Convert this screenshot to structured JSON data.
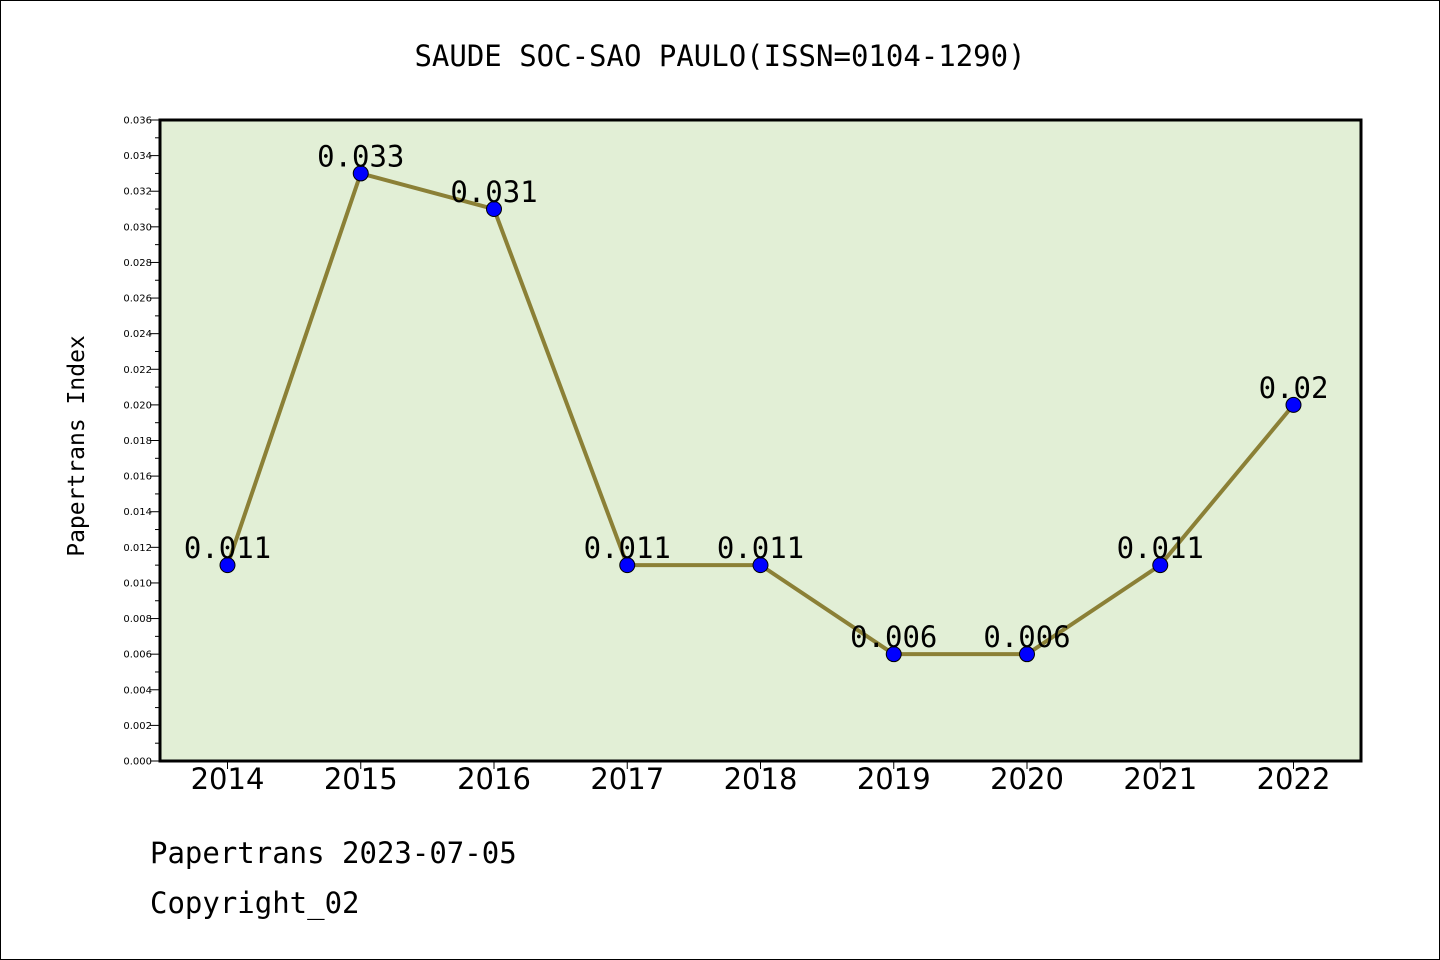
{
  "chart_data": {
    "type": "line",
    "title": "SAUDE SOC-SAO PAULO(ISSN=0104-1290)",
    "xlabel": "",
    "ylabel": "Papertrans Index",
    "x": [
      "2014",
      "2015",
      "2016",
      "2017",
      "2018",
      "2019",
      "2020",
      "2021",
      "2022"
    ],
    "series": [
      {
        "values": [
          0.011,
          0.033,
          0.031,
          0.011,
          0.011,
          0.006,
          0.006,
          0.011,
          0.02
        ],
        "labels": [
          "0.011",
          "0.033",
          "0.031",
          "0.011",
          "0.011",
          "0.006",
          "0.006",
          "0.011",
          "0.02"
        ]
      }
    ],
    "ylim": [
      0,
      0.036
    ],
    "yticks": [
      "0.000",
      "0.002",
      "0.004",
      "0.006",
      "0.008",
      "0.010",
      "0.012",
      "0.014",
      "0.016",
      "0.018",
      "0.020",
      "0.022",
      "0.024",
      "0.026",
      "0.028",
      "0.030",
      "0.032",
      "0.034",
      "0.036"
    ],
    "grid": false,
    "colors": {
      "plot_background": "#e2efd6",
      "line": "#8b8036",
      "marker": "#0000ff"
    }
  },
  "footer": {
    "date_line": "Papertrans 2023-07-05",
    "copyright": "Copyright_02"
  }
}
